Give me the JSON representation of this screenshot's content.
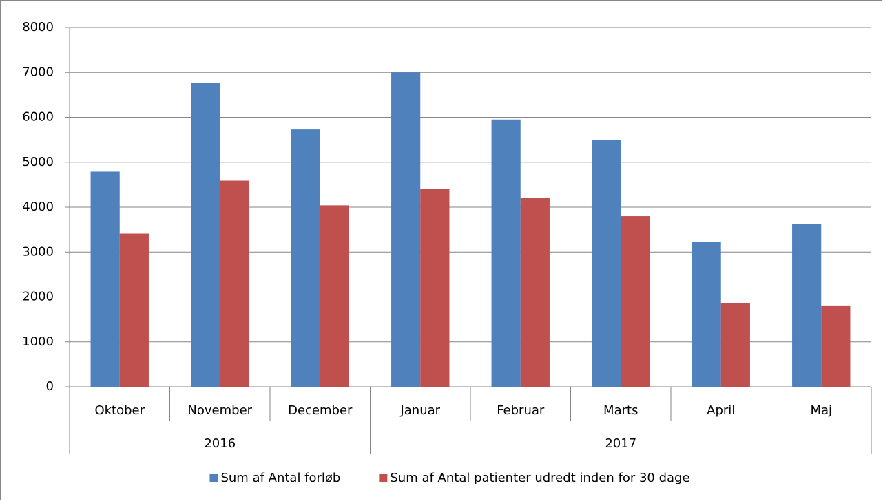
{
  "chart_data": {
    "type": "bar",
    "categories": [
      "Oktober",
      "November",
      "December",
      "Januar",
      "Februar",
      "Marts",
      "April",
      "Maj"
    ],
    "groups": [
      {
        "label": "2016",
        "span": 3
      },
      {
        "label": "2017",
        "span": 5
      }
    ],
    "series": [
      {
        "name": "Sum af Antal forløb",
        "color": "#4f81bd",
        "values": [
          4790,
          6770,
          5730,
          7000,
          5950,
          5490,
          3220,
          3630
        ]
      },
      {
        "name": "Sum af Antal patienter udredt inden for 30 dage",
        "color": "#c0504d",
        "values": [
          3410,
          4590,
          4040,
          4410,
          4200,
          3800,
          1870,
          1810
        ]
      }
    ],
    "ylim": [
      0,
      8000
    ],
    "yticks": [
      0,
      1000,
      2000,
      3000,
      4000,
      5000,
      6000,
      7000,
      8000
    ],
    "grid": true,
    "legend": "bottom"
  }
}
